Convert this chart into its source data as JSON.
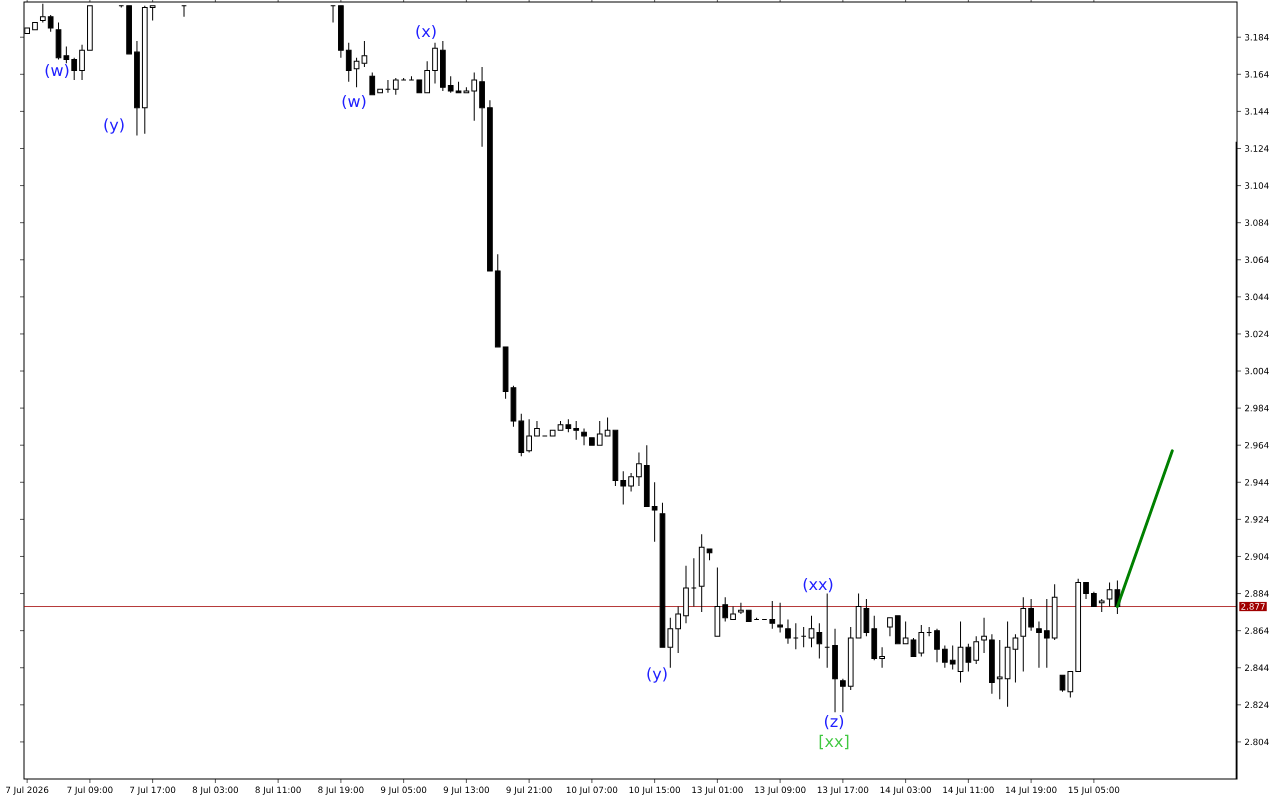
{
  "chart_data": {
    "type": "candlestick",
    "categories": [
      "7 Jul 2026",
      null,
      null,
      null,
      null,
      null,
      null,
      null,
      "7 Jul 09:00",
      null,
      null,
      null,
      null,
      null,
      null,
      null,
      "7 Jul 17:00",
      null,
      null,
      null,
      null,
      null,
      null,
      null,
      "8 Jul 03:00",
      null,
      null,
      null,
      null,
      null,
      null,
      null,
      "8 Jul 11:00",
      null,
      null,
      null,
      null,
      null,
      null,
      null,
      "8 Jul 19:00",
      null,
      null,
      null,
      null,
      null,
      null,
      null,
      "9 Jul 05:00",
      null,
      null,
      null,
      null,
      null,
      null,
      null,
      "9 Jul 13:00",
      null,
      null,
      null,
      null,
      null,
      null,
      null,
      "9 Jul 21:00",
      null,
      null,
      null,
      null,
      null,
      null,
      null,
      "10 Jul 07:00",
      null,
      null,
      null,
      null,
      null,
      null,
      null,
      "10 Jul 15:00",
      null,
      null,
      null,
      null,
      null,
      null,
      null,
      "13 Jul 01:00",
      null,
      null,
      null,
      null,
      null,
      null,
      null,
      "13 Jul 09:00",
      null,
      null,
      null,
      null,
      null,
      null,
      null,
      "13 Jul 17:00",
      null,
      null,
      null,
      null,
      null,
      null,
      null,
      "14 Jul 03:00",
      null,
      null,
      null,
      null,
      null,
      null,
      null,
      "14 Jul 11:00",
      null,
      null,
      null,
      null,
      null,
      null,
      null,
      "14 Jul 19:00",
      null,
      null,
      null,
      null,
      null,
      null,
      null,
      "15 Jul 05:00",
      null,
      null,
      null,
      null,
      null,
      null,
      null,
      null,
      null,
      null,
      null,
      null,
      null,
      null,
      null,
      null,
      null,
      null
    ],
    "ohlc": [
      [
        3.186,
        3.189,
        3.186,
        3.189
      ],
      [
        3.188,
        3.192,
        3.188,
        3.192
      ],
      [
        3.193,
        3.202,
        3.192,
        3.195
      ],
      [
        3.195,
        3.196,
        3.187,
        3.189
      ],
      [
        3.188,
        3.192,
        3.172,
        3.173
      ],
      [
        3.174,
        3.179,
        3.17,
        3.172
      ],
      [
        3.172,
        3.173,
        3.161,
        3.166
      ],
      [
        3.166,
        3.18,
        3.161,
        3.177
      ],
      [
        3.177,
        3.201,
        3.177,
        3.201
      ],
      null,
      null,
      null,
      [
        3.201,
        3.201,
        3.2,
        3.201
      ],
      [
        3.201,
        3.201,
        3.175,
        3.175
      ],
      [
        3.176,
        3.182,
        3.131,
        3.146
      ],
      [
        3.146,
        3.201,
        3.132,
        3.2
      ],
      [
        3.2,
        3.201,
        3.193,
        3.201
      ],
      null,
      null,
      null,
      [
        3.201,
        3.201,
        3.195,
        3.201
      ],
      null,
      null,
      null,
      null,
      null,
      null,
      null,
      null,
      null,
      null,
      null,
      null,
      null,
      null,
      null,
      null,
      null,
      null,
      [
        3.201,
        3.201,
        3.192,
        3.201
      ],
      [
        3.201,
        3.201,
        3.173,
        3.177
      ],
      [
        3.177,
        3.181,
        3.16,
        3.166
      ],
      [
        3.167,
        3.173,
        3.157,
        3.171
      ],
      [
        3.17,
        3.182,
        3.168,
        3.174
      ],
      [
        3.163,
        3.165,
        3.153,
        3.153
      ],
      [
        3.154,
        3.156,
        3.154,
        3.156
      ],
      [
        3.156,
        3.161,
        3.154,
        3.156
      ],
      [
        3.156,
        3.162,
        3.153,
        3.161
      ],
      [
        3.161,
        3.162,
        3.161,
        3.161
      ],
      [
        3.161,
        3.163,
        3.161,
        3.161
      ],
      [
        3.161,
        3.161,
        3.154,
        3.154
      ],
      [
        3.154,
        3.171,
        3.154,
        3.166
      ],
      [
        3.166,
        3.181,
        3.159,
        3.178
      ],
      [
        3.177,
        3.182,
        3.155,
        3.157
      ],
      [
        3.158,
        3.163,
        3.154,
        3.155
      ],
      [
        3.155,
        3.16,
        3.154,
        3.154
      ],
      [
        3.154,
        3.157,
        3.154,
        3.155
      ],
      [
        3.155,
        3.165,
        3.139,
        3.161
      ],
      [
        3.16,
        3.168,
        3.125,
        3.146
      ],
      [
        3.146,
        3.15,
        3.058,
        3.058
      ],
      [
        3.058,
        3.067,
        3.017,
        3.017
      ],
      [
        3.017,
        3.017,
        2.989,
        2.993
      ],
      [
        2.995,
        2.996,
        2.974,
        2.977
      ],
      [
        2.977,
        2.981,
        2.958,
        2.96
      ],
      [
        2.961,
        2.978,
        2.96,
        2.969
      ],
      [
        2.969,
        2.977,
        2.969,
        2.973
      ],
      [
        2.969,
        2.969,
        2.969,
        2.969
      ],
      [
        2.969,
        2.972,
        2.969,
        2.972
      ],
      [
        2.972,
        2.977,
        2.972,
        2.975
      ],
      [
        2.975,
        2.978,
        2.971,
        2.973
      ],
      [
        2.973,
        2.977,
        2.967,
        2.972
      ],
      [
        2.971,
        2.973,
        2.964,
        2.969
      ],
      [
        2.968,
        2.968,
        2.964,
        2.964
      ],
      [
        2.964,
        2.977,
        2.964,
        2.97
      ],
      [
        2.969,
        2.979,
        2.969,
        2.972
      ],
      [
        2.972,
        2.972,
        2.942,
        2.945
      ],
      [
        2.945,
        2.95,
        2.932,
        2.942
      ],
      [
        2.942,
        2.949,
        2.939,
        2.947
      ],
      [
        2.947,
        2.96,
        2.942,
        2.954
      ],
      [
        2.953,
        2.964,
        2.931,
        2.931
      ],
      [
        2.931,
        2.944,
        2.912,
        2.929
      ],
      [
        2.927,
        2.933,
        2.855,
        2.855
      ],
      [
        2.855,
        2.871,
        2.844,
        2.865
      ],
      [
        2.865,
        2.877,
        2.852,
        2.873
      ],
      [
        2.872,
        2.899,
        2.868,
        2.887
      ],
      [
        2.887,
        2.903,
        2.877,
        2.887
      ],
      [
        2.888,
        2.916,
        2.874,
        2.909
      ],
      [
        2.908,
        2.908,
        2.902,
        2.906
      ],
      [
        2.861,
        2.898,
        2.861,
        2.877
      ],
      [
        2.878,
        2.882,
        2.869,
        2.871
      ],
      [
        2.87,
        2.877,
        2.87,
        2.873
      ],
      [
        2.874,
        2.879,
        2.873,
        2.875
      ],
      [
        2.875,
        2.875,
        2.869,
        2.869
      ],
      [
        2.87,
        2.871,
        2.87,
        2.87
      ],
      [
        2.87,
        2.87,
        2.87,
        2.87
      ],
      [
        2.87,
        2.88,
        2.865,
        2.868
      ],
      [
        2.867,
        2.879,
        2.863,
        2.866
      ],
      [
        2.865,
        2.87,
        2.857,
        2.86
      ],
      [
        2.86,
        2.868,
        2.854,
        2.86
      ],
      [
        2.861,
        2.866,
        2.855,
        2.861
      ],
      [
        2.86,
        2.872,
        2.855,
        2.865
      ],
      [
        2.863,
        2.868,
        2.849,
        2.857
      ],
      [
        2.855,
        2.884,
        2.844,
        2.855
      ],
      [
        2.856,
        2.865,
        2.82,
        2.838
      ],
      [
        2.837,
        2.838,
        2.82,
        2.834
      ],
      [
        2.834,
        2.866,
        2.832,
        2.86
      ],
      [
        2.86,
        2.884,
        2.86,
        2.877
      ],
      [
        2.876,
        2.881,
        2.861,
        2.863
      ],
      [
        2.865,
        2.872,
        2.848,
        2.849
      ],
      [
        2.849,
        2.855,
        2.844,
        2.85
      ],
      [
        2.866,
        2.871,
        2.861,
        2.871
      ],
      [
        2.872,
        2.872,
        2.857,
        2.857
      ],
      [
        2.857,
        2.869,
        2.857,
        2.86
      ],
      [
        2.859,
        2.86,
        2.85,
        2.85
      ],
      [
        2.852,
        2.867,
        2.85,
        2.863
      ],
      [
        2.863,
        2.866,
        2.861,
        2.863
      ],
      [
        2.864,
        2.865,
        2.847,
        2.854
      ],
      [
        2.854,
        2.856,
        2.844,
        2.847
      ],
      [
        2.848,
        2.856,
        2.843,
        2.846
      ],
      [
        2.842,
        2.869,
        2.836,
        2.855
      ],
      [
        2.855,
        2.857,
        2.842,
        2.847
      ],
      [
        2.848,
        2.861,
        2.846,
        2.858
      ],
      [
        2.859,
        2.871,
        2.852,
        2.861
      ],
      [
        2.859,
        2.862,
        2.83,
        2.836
      ],
      [
        2.838,
        2.859,
        2.827,
        2.839
      ],
      [
        2.838,
        2.869,
        2.823,
        2.855
      ],
      [
        2.854,
        2.862,
        2.836,
        2.86
      ],
      [
        2.861,
        2.882,
        2.842,
        2.876
      ],
      [
        2.876,
        2.881,
        2.864,
        2.866
      ],
      [
        2.865,
        2.869,
        2.844,
        2.863
      ],
      [
        2.864,
        2.881,
        2.844,
        2.86
      ],
      [
        2.86,
        2.889,
        2.859,
        2.882
      ],
      [
        2.84,
        2.84,
        2.831,
        2.832
      ],
      [
        2.831,
        2.842,
        2.828,
        2.842
      ],
      [
        2.842,
        2.892,
        2.842,
        2.89
      ],
      [
        2.89,
        2.89,
        2.881,
        2.884
      ],
      [
        2.884,
        2.885,
        2.877,
        2.877
      ],
      [
        2.879,
        2.881,
        2.874,
        2.88
      ],
      [
        2.881,
        2.89,
        2.877,
        2.886
      ],
      [
        2.886,
        2.891,
        2.873,
        2.877
      ],
      null,
      null,
      null,
      null,
      null,
      null,
      null,
      null,
      null,
      null,
      null,
      null,
      null,
      null,
      null
    ],
    "series": [
      {
        "type": "line",
        "color": "#008000",
        "values": [
          null,
          null,
          null,
          null,
          null,
          null,
          null,
          null,
          null,
          null,
          null,
          null,
          null,
          null,
          null,
          null,
          null,
          null,
          null,
          null,
          null,
          null,
          null,
          null,
          null,
          null,
          null,
          null,
          null,
          null,
          null,
          null,
          null,
          null,
          null,
          null,
          null,
          null,
          null,
          null,
          null,
          null,
          null,
          null,
          null,
          null,
          null,
          null,
          null,
          null,
          null,
          null,
          null,
          null,
          null,
          null,
          null,
          null,
          null,
          null,
          null,
          null,
          null,
          null,
          null,
          null,
          null,
          null,
          null,
          null,
          null,
          null,
          null,
          null,
          null,
          null,
          null,
          null,
          null,
          null,
          null,
          null,
          null,
          null,
          null,
          null,
          null,
          null,
          null,
          null,
          null,
          null,
          null,
          null,
          null,
          null,
          null,
          null,
          null,
          null,
          null,
          null,
          null,
          null,
          null,
          null,
          null,
          null,
          null,
          null,
          null,
          null,
          null,
          null,
          null,
          null,
          null,
          null,
          null,
          null,
          null,
          null,
          null,
          null,
          null,
          null,
          null,
          null,
          null,
          null,
          null,
          null,
          null,
          null,
          null,
          null,
          null,
          null,
          null,
          2.877,
          null,
          null,
          null,
          null,
          null,
          null,
          2.961,
          null,
          null,
          null,
          null,
          null,
          null,
          null,
          null
        ]
      }
    ],
    "ylim": [
      2.784,
      3.203
    ],
    "yticks": [
      2.804,
      2.824,
      2.844,
      2.864,
      2.884,
      2.904,
      2.924,
      2.944,
      2.964,
      2.984,
      3.004,
      3.024,
      3.044,
      3.064,
      3.084,
      3.104,
      3.124,
      3.144,
      3.164,
      3.184
    ],
    "ref_lines": [
      {
        "axis": "y",
        "value": 2.877,
        "label": "2.877",
        "color": "#a00000"
      }
    ],
    "annotations": [
      "(w)",
      "(y)",
      "(w)",
      "(x)",
      "(y)",
      "(xx)",
      "(z)",
      "[xx]"
    ]
  }
}
